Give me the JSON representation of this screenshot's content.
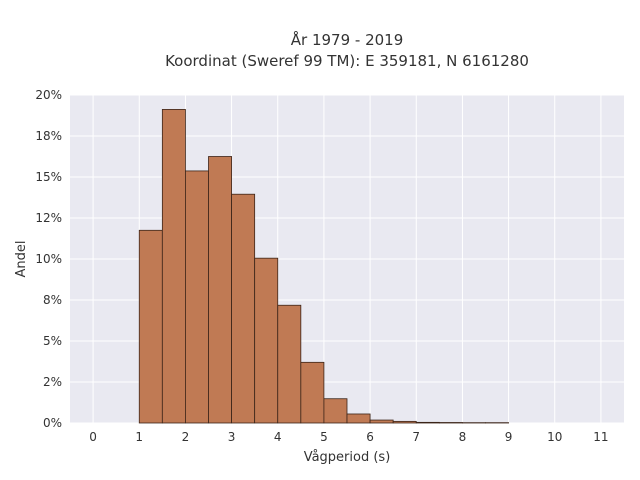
{
  "chart_data": {
    "type": "bar",
    "title_lines": [
      "År 1979 - 2019",
      "Koordinat (Sweref 99 TM): E 359181, N 6161280"
    ],
    "xlabel": "Vågperiod (s)",
    "ylabel": "Andel",
    "x_ticks": [
      "0",
      "1",
      "2",
      "3",
      "4",
      "5",
      "6",
      "7",
      "8",
      "9",
      "10",
      "11"
    ],
    "y_ticks": [
      "0%",
      "2%",
      "5%",
      "8%",
      "10%",
      "12%",
      "15%",
      "18%",
      "20%"
    ],
    "xlim": [
      -0.5,
      11.5
    ],
    "ylim": [
      0,
      0.2
    ],
    "grid": true,
    "bin_width": 0.5,
    "bins": [
      {
        "start": 1.0,
        "value": 0.1175
      },
      {
        "start": 1.5,
        "value": 0.1912
      },
      {
        "start": 2.0,
        "value": 0.1537
      },
      {
        "start": 2.5,
        "value": 0.1625
      },
      {
        "start": 3.0,
        "value": 0.1395
      },
      {
        "start": 3.5,
        "value": 0.1005
      },
      {
        "start": 4.0,
        "value": 0.0718
      },
      {
        "start": 4.5,
        "value": 0.037
      },
      {
        "start": 5.0,
        "value": 0.0148
      },
      {
        "start": 5.5,
        "value": 0.0055
      },
      {
        "start": 6.0,
        "value": 0.0018
      },
      {
        "start": 6.5,
        "value": 0.001
      },
      {
        "start": 7.0,
        "value": 0.0004
      },
      {
        "start": 7.5,
        "value": 0.0003
      },
      {
        "start": 8.0,
        "value": 0.0002
      },
      {
        "start": 8.5,
        "value": 0.0002
      }
    ],
    "colors": {
      "bar": "#c07a54",
      "bar_edge": "#3b2418",
      "plot_bg": "#e9e9f1",
      "grid": "#ffffff"
    }
  }
}
